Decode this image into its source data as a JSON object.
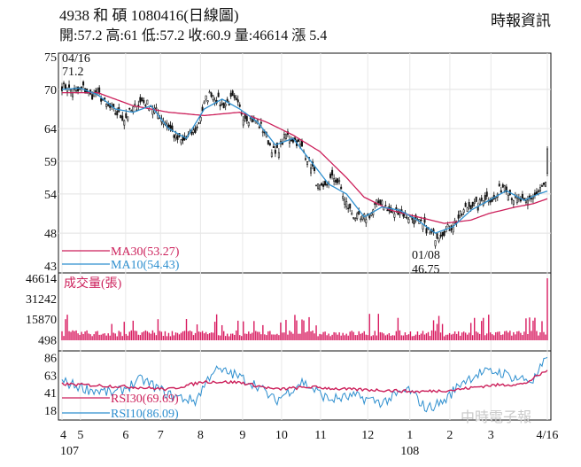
{
  "header": {
    "title": "4938  和    碩 1080416(日線圖)",
    "ohlc": "開:57.2 高:61 低:57.2 收:60.9 量:46614 漲 5.4",
    "source": "時報資訊"
  },
  "colors": {
    "up_candle": "#ffffff",
    "down_candle": "#111111",
    "ma30": "#cc1f5a",
    "ma10": "#2e8fcf",
    "volume": "#d81b60",
    "rsi30": "#cc1f5a",
    "rsi10": "#2e8fcf"
  },
  "watermark": "中時電子報",
  "chart_data": [
    {
      "type": "candlestick",
      "name": "price",
      "ylim": [
        43,
        75
      ],
      "y_ticks": [
        "75",
        "70",
        "64",
        "59",
        "54",
        "48",
        "43"
      ],
      "y_tick_values": [
        75,
        70,
        64,
        59,
        54,
        48,
        43
      ],
      "x_month_labels": [
        "4",
        "5",
        "6",
        "7",
        "8",
        "9",
        "10",
        "11",
        "12",
        "1",
        "2",
        "3",
        "4/16"
      ],
      "x_year_labels": [
        "107",
        "108"
      ],
      "annotations": {
        "high_date": "04/16",
        "high_value": "71.2",
        "low_date": "01/08",
        "low_value": "46.75"
      },
      "legend": [
        {
          "label": "MA30(53.27)",
          "color_key": "ma30"
        },
        {
          "label": "MA10(54.43)",
          "color_key": "ma10"
        }
      ],
      "keypoints": [
        [
          0,
          70.5
        ],
        [
          4,
          70.0
        ],
        [
          8,
          69.5
        ],
        [
          12,
          70.2
        ],
        [
          16,
          69.0
        ],
        [
          20,
          69.5
        ],
        [
          25,
          67.5
        ],
        [
          30,
          66.5
        ],
        [
          35,
          65.5
        ],
        [
          40,
          67.0
        ],
        [
          45,
          68.2
        ],
        [
          50,
          67.5
        ],
        [
          55,
          66.0
        ],
        [
          60,
          64.5
        ],
        [
          64,
          62.5
        ],
        [
          68,
          62.0
        ],
        [
          72,
          63.0
        ],
        [
          76,
          64.0
        ],
        [
          78,
          66.0
        ],
        [
          81,
          68.5
        ],
        [
          84,
          69.5
        ],
        [
          87,
          68.5
        ],
        [
          90,
          67.5
        ],
        [
          93,
          68.0
        ],
        [
          96,
          68.5
        ],
        [
          99,
          67.5
        ],
        [
          102,
          66.0
        ],
        [
          106,
          65.5
        ],
        [
          110,
          65.0
        ],
        [
          114,
          63.5
        ],
        [
          117,
          61.5
        ],
        [
          120,
          60.0
        ],
        [
          123,
          61.5
        ],
        [
          126,
          63.0
        ],
        [
          129,
          62.5
        ],
        [
          132,
          62.0
        ],
        [
          135,
          61.0
        ],
        [
          138,
          59.5
        ],
        [
          141,
          58.0
        ],
        [
          144,
          55.0
        ],
        [
          147,
          54.5
        ],
        [
          150,
          56.0
        ],
        [
          153,
          56.5
        ],
        [
          156,
          55.5
        ],
        [
          159,
          53.0
        ],
        [
          162,
          51.5
        ],
        [
          165,
          50.5
        ],
        [
          168,
          50.0
        ],
        [
          171,
          50.5
        ],
        [
          174,
          51.0
        ],
        [
          177,
          52.5
        ],
        [
          180,
          53.0
        ],
        [
          183,
          51.5
        ],
        [
          186,
          51.0
        ],
        [
          189,
          51.5
        ],
        [
          192,
          51.0
        ],
        [
          195,
          50.5
        ],
        [
          198,
          50.0
        ],
        [
          201,
          49.5
        ],
        [
          204,
          49.0
        ],
        [
          207,
          48.0
        ],
        [
          210,
          47.5
        ],
        [
          213,
          48.0
        ],
        [
          216,
          48.5
        ],
        [
          219,
          49.0
        ],
        [
          222,
          50.0
        ],
        [
          225,
          51.0
        ],
        [
          228,
          52.0
        ],
        [
          231,
          52.5
        ],
        [
          234,
          52.0
        ],
        [
          237,
          53.5
        ],
        [
          240,
          53.5
        ],
        [
          243,
          53.0
        ],
        [
          246,
          54.5
        ],
        [
          249,
          55.5
        ],
        [
          252,
          54.0
        ],
        [
          255,
          53.0
        ],
        [
          258,
          53.0
        ],
        [
          261,
          52.5
        ],
        [
          264,
          53.5
        ],
        [
          267,
          54.0
        ],
        [
          270,
          55.0
        ],
        [
          272,
          55.5
        ],
        [
          273,
          60.9
        ]
      ],
      "ma30_keypoints": [
        [
          0,
          69.5
        ],
        [
          20,
          69.5
        ],
        [
          40,
          67.5
        ],
        [
          60,
          66.5
        ],
        [
          80,
          66.0
        ],
        [
          100,
          66.5
        ],
        [
          115,
          65.0
        ],
        [
          130,
          63.0
        ],
        [
          145,
          60.5
        ],
        [
          160,
          56.5
        ],
        [
          170,
          53.5
        ],
        [
          185,
          51.5
        ],
        [
          200,
          50.5
        ],
        [
          215,
          49.5
        ],
        [
          230,
          50.0
        ],
        [
          240,
          51.0
        ],
        [
          255,
          52.0
        ],
        [
          265,
          52.5
        ],
        [
          273,
          53.27
        ]
      ],
      "ma10_keypoints": [
        [
          0,
          70.0
        ],
        [
          10,
          70.2
        ],
        [
          20,
          69.2
        ],
        [
          30,
          67.0
        ],
        [
          40,
          66.5
        ],
        [
          50,
          67.5
        ],
        [
          60,
          64.0
        ],
        [
          70,
          62.5
        ],
        [
          80,
          67.0
        ],
        [
          90,
          68.5
        ],
        [
          100,
          67.0
        ],
        [
          110,
          65.0
        ],
        [
          120,
          61.5
        ],
        [
          130,
          62.5
        ],
        [
          140,
          59.0
        ],
        [
          150,
          55.5
        ],
        [
          160,
          54.0
        ],
        [
          170,
          50.5
        ],
        [
          180,
          52.0
        ],
        [
          190,
          51.5
        ],
        [
          200,
          50.0
        ],
        [
          210,
          48.0
        ],
        [
          220,
          49.0
        ],
        [
          230,
          51.5
        ],
        [
          240,
          53.0
        ],
        [
          250,
          54.5
        ],
        [
          260,
          53.0
        ],
        [
          268,
          54.0
        ],
        [
          273,
          54.43
        ]
      ]
    },
    {
      "type": "bar",
      "name": "volume",
      "title": "成交量(張)",
      "ylim": [
        0,
        46614
      ],
      "y_ticks": [
        "46614",
        "31242",
        "15870",
        "498"
      ],
      "y_tick_values": [
        46614,
        31242,
        15870,
        498
      ],
      "last_value": 46614
    },
    {
      "type": "line",
      "name": "rsi",
      "ylim": [
        10,
        90
      ],
      "y_ticks": [
        "86",
        "63",
        "41",
        "18"
      ],
      "y_tick_values": [
        86,
        63,
        41,
        18
      ],
      "legend": [
        {
          "label": "RSI30(69.69)",
          "color_key": "rsi30"
        },
        {
          "label": "RSI10(86.09)",
          "color_key": "rsi10"
        }
      ]
    }
  ]
}
